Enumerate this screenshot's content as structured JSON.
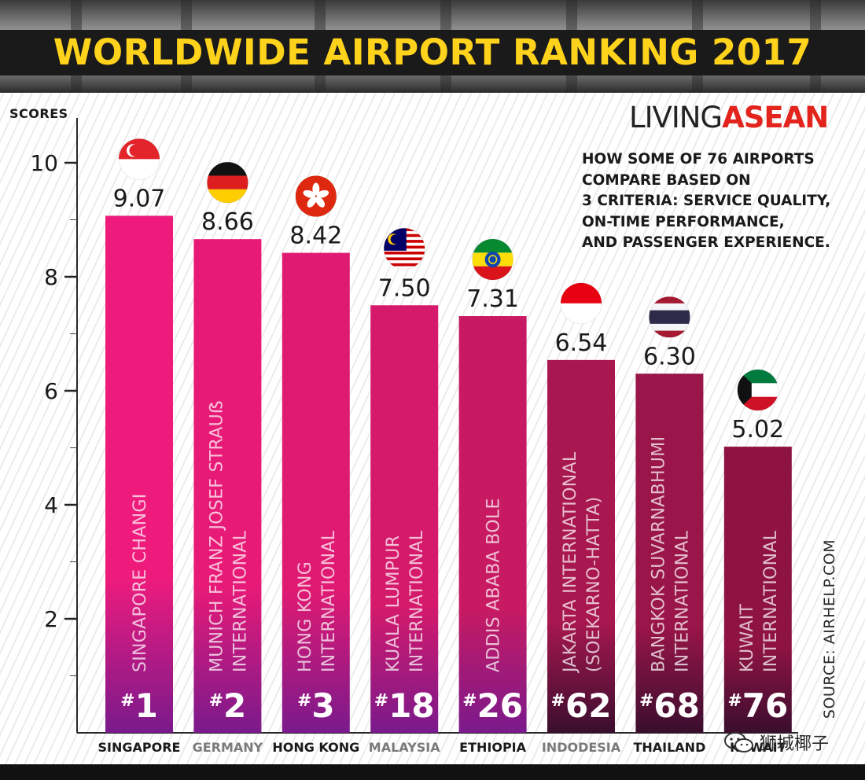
{
  "header": {
    "title": "WORLDWIDE AIRPORT RANKING 2017"
  },
  "logo": {
    "part1": "LIVING",
    "part2": "ASEAN"
  },
  "subtitle": [
    "HOW SOME OF 76 AIRPORTS",
    "COMPARE BASED ON",
    "3 CRITERIA: SERVICE QUALITY,",
    "ON-TIME PERFORMANCE,",
    "AND PASSENGER EXPERIENCE."
  ],
  "source": "SOURCE: AIRHELP.COM",
  "watermark": "狮城椰子",
  "colors": {
    "title_yellow": "#ffd21c",
    "banner": "#1a1a1a",
    "logo_red": "#e2241c"
  },
  "chart_data": {
    "type": "bar",
    "title": "WORLDWIDE AIRPORT RANKING 2017",
    "ylabel": "SCORES",
    "ylim": [
      0,
      10.5
    ],
    "yticks": [
      2,
      4,
      6,
      8,
      10
    ],
    "categories": [
      "SINGAPORE",
      "GERMANY",
      "HONG KONG",
      "MALAYSIA",
      "ETHIOPIA",
      "INDODESIA",
      "THAILAND",
      "KUWAIT"
    ],
    "airports": [
      [
        "SINGAPORE CHANGI"
      ],
      [
        "MUNICH FRANZ JOSEF STRAUẞ",
        "INTERNATIONAL"
      ],
      [
        "HONG KONG",
        "INTERNATIONAL"
      ],
      [
        "KUALA LUMPUR",
        "INTERNATIONAL"
      ],
      [
        "ADDIS ABABA BOLE"
      ],
      [
        "JAKARTA INTERNATIONAL",
        "(SOEKARNO-HATTA)"
      ],
      [
        "BANGKOK SUVARNABHUMI",
        "INTERNATIONAL"
      ],
      [
        "KUWAIT",
        "INTERNATIONAL"
      ]
    ],
    "values": [
      9.07,
      8.66,
      8.42,
      7.5,
      7.31,
      6.54,
      6.3,
      5.02
    ],
    "value_labels": [
      "9.07",
      "8.66",
      "8.42",
      "7.50",
      "7.31",
      "6.54",
      "6.30",
      "5.02"
    ],
    "ranks": [
      "1",
      "2",
      "3",
      "18",
      "26",
      "62",
      "68",
      "76"
    ],
    "rank_prefix": "#",
    "flags": [
      "singapore-flag",
      "germany-flag",
      "hong-kong-flag",
      "malaysia-flag",
      "ethiopia-flag",
      "indonesia-flag",
      "thailand-flag",
      "kuwait-flag"
    ],
    "bar_colors": [
      "#ee1b7c",
      "#e81a77",
      "#e01a72",
      "#d61a6b",
      "#c81a62",
      "#a8174f",
      "#9a1549",
      "#8e1343"
    ],
    "country_label_colors": [
      "#1a1a1a",
      "#7a7a7a",
      "#1a1a1a",
      "#7a7a7a",
      "#1a1a1a",
      "#7a7a7a",
      "#1a1a1a",
      "#1a1a1a"
    ]
  }
}
